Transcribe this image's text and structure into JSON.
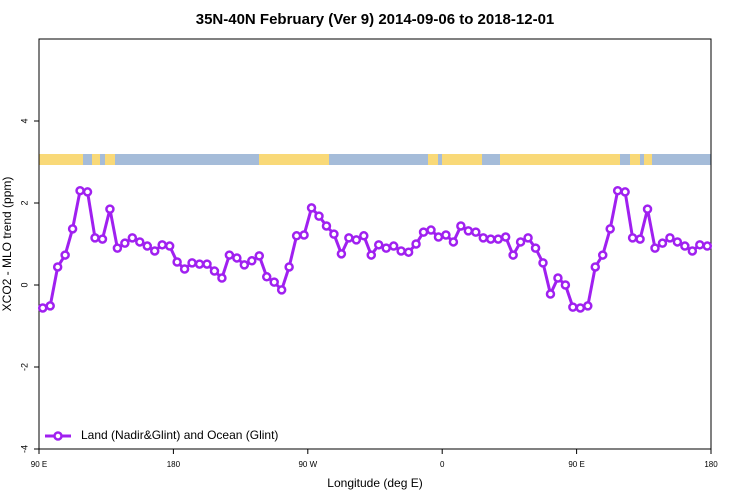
{
  "chart_data": {
    "type": "line",
    "title": "35N-40N February (Ver 9)   2014-09-06 to 2018-12-01",
    "x_label": "Longitude (deg E)",
    "y_label": "XCO2 - MLO trend (ppm)",
    "xlim": [
      90,
      540
    ],
    "ylim": [
      -4,
      6
    ],
    "xticks": [
      {
        "value": 90,
        "label": "90 E"
      },
      180,
      {
        "value": 270,
        "label": "90 W"
      },
      {
        "value": 360,
        "label": "0"
      },
      {
        "value": 450,
        "label": "90 E"
      },
      {
        "value": 540,
        "label": "180"
      }
    ],
    "yticks": [
      -4,
      -2,
      0,
      2,
      4
    ],
    "legend": "bottom-left",
    "x": [
      92.5,
      97.5,
      102.5,
      107.5,
      112.5,
      117.5,
      122.5,
      127.5,
      132.5,
      137.5,
      142.5,
      147.5,
      152.5,
      157.5,
      162.5,
      167.5,
      172.5,
      177.5,
      182.5,
      187.5,
      192.5,
      197.5,
      202.5,
      207.5,
      212.5,
      217.5,
      222.5,
      227.5,
      232.5,
      237.5,
      242.5,
      247.5,
      252.5,
      257.5,
      262.5,
      267.5,
      272.5,
      277.5,
      282.5,
      287.5,
      292.5,
      297.5,
      302.5,
      307.5,
      312.5,
      317.5,
      322.5,
      327.5,
      332.5,
      337.5,
      342.5,
      347.5,
      352.5,
      357.5,
      362.5,
      367.5,
      372.5,
      377.5,
      382.5,
      387.5,
      392.5,
      397.5,
      402.5,
      407.5,
      412.5,
      417.5,
      422.5,
      427.5,
      432.5,
      437.5,
      442.5,
      447.5,
      452.5,
      457.5,
      462.5,
      467.5,
      472.5,
      477.5,
      482.5,
      487.5,
      492.5,
      497.5,
      502.5,
      507.5,
      512.5,
      517.5,
      522.5,
      527.5,
      532.5,
      537.5
    ],
    "series": [
      {
        "name": "Land (Nadir&Glint) and Ocean (Glint)",
        "color": "#a020f0",
        "values": [
          -0.56,
          -0.51,
          0.44,
          0.73,
          1.37,
          2.3,
          2.27,
          1.15,
          1.12,
          1.85,
          0.9,
          1.02,
          1.15,
          1.05,
          0.95,
          0.83,
          0.98,
          0.95,
          0.56,
          0.39,
          0.54,
          0.51,
          0.51,
          0.34,
          0.17,
          0.73,
          0.66,
          0.49,
          0.59,
          0.71,
          0.2,
          0.07,
          -0.12,
          0.44,
          1.2,
          1.22,
          1.88,
          1.68,
          1.44,
          1.24,
          0.76,
          1.15,
          1.1,
          1.2,
          0.73,
          0.98,
          0.9,
          0.95,
          0.83,
          0.8,
          1.0,
          1.29,
          1.34,
          1.17,
          1.22,
          1.05,
          1.44,
          1.32,
          1.29,
          1.15,
          1.12,
          1.12,
          1.17,
          0.73,
          1.05,
          1.15,
          0.9,
          0.54,
          -0.22,
          0.17,
          0.0,
          -0.54,
          -0.56,
          -0.51,
          0.44,
          0.73,
          1.37,
          2.3,
          2.27,
          1.15,
          1.12,
          1.85,
          0.9,
          1.02,
          1.15,
          1.05,
          0.95,
          0.83,
          0.98,
          0.95
        ]
      }
    ]
  }
}
